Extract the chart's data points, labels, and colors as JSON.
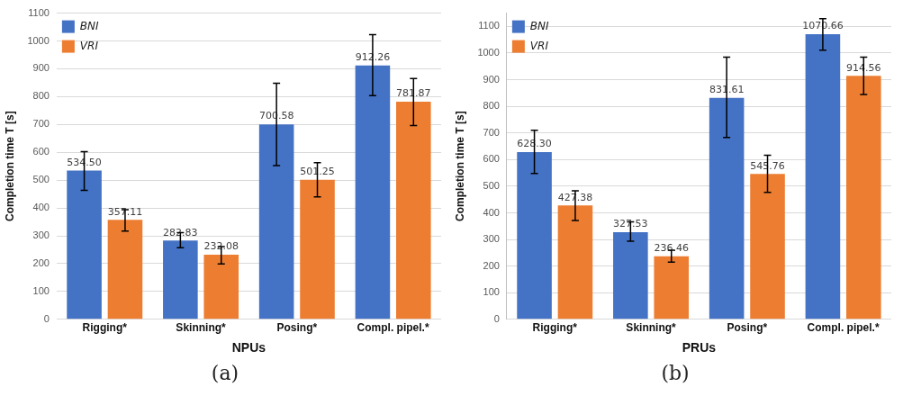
{
  "chart_data": [
    {
      "type": "bar",
      "xlabel": "NPUs",
      "ylabel": "Completion time T [s]",
      "categories": [
        "Rigging*",
        "Skinning*",
        "Posing*",
        "Compl. pipel.*"
      ],
      "ylim": [
        0,
        1100
      ],
      "yticks": [
        0,
        100,
        200,
        300,
        400,
        500,
        600,
        700,
        800,
        900,
        1000,
        1100
      ],
      "grid": "y",
      "legend": "top left",
      "annotations": [
        "(a)"
      ],
      "series": [
        {
          "name": "BNI",
          "color": "#4472c4",
          "values": [
            534.5,
            282.83,
            700.58,
            912.26
          ],
          "value_labels": [
            "534.50",
            "282.83",
            "700.58",
            "912.26"
          ],
          "errors": [
            [
              463,
              602
            ],
            [
              257,
              311
            ],
            [
              552,
              848
            ],
            [
              804,
              1023
            ]
          ]
        },
        {
          "name": "VRI",
          "color": "#ed7d31",
          "values": [
            357.11,
            232.08,
            501.25,
            781.87
          ],
          "value_labels": [
            "357.11",
            "232.08",
            "501.25",
            "781.87"
          ],
          "errors": [
            [
              317,
              394
            ],
            [
              199,
              261
            ],
            [
              440,
              563
            ],
            [
              696,
              865
            ]
          ]
        }
      ]
    },
    {
      "type": "bar",
      "xlabel": "PRUs",
      "ylabel": "Completion time T [s]",
      "categories": [
        "Rigging*",
        "Skinning*",
        "Posing*",
        "Compl. pipel.*"
      ],
      "ylim": [
        0,
        1150
      ],
      "yticks": [
        0,
        100,
        200,
        300,
        400,
        500,
        600,
        700,
        800,
        900,
        1000,
        1100
      ],
      "grid": "y",
      "legend": "top left",
      "annotations": [
        "(b)"
      ],
      "series": [
        {
          "name": "BNI",
          "color": "#4472c4",
          "values": [
            628.3,
            327.53,
            831.61,
            1070.66
          ],
          "value_labels": [
            "628.30",
            "327.53",
            "831.61",
            "1070.66"
          ],
          "errors": [
            [
              548,
              710
            ],
            [
              293,
              366
            ],
            [
              683,
              985
            ],
            [
              1011,
              1129
            ]
          ]
        },
        {
          "name": "VRI",
          "color": "#ed7d31",
          "values": [
            427.38,
            236.46,
            545.76,
            914.56
          ],
          "value_labels": [
            "427.38",
            "236.46",
            "545.76",
            "914.56"
          ],
          "errors": [
            [
              371,
              483
            ],
            [
              215,
              260
            ],
            [
              477,
              616
            ],
            [
              844,
              985
            ]
          ]
        }
      ]
    }
  ]
}
